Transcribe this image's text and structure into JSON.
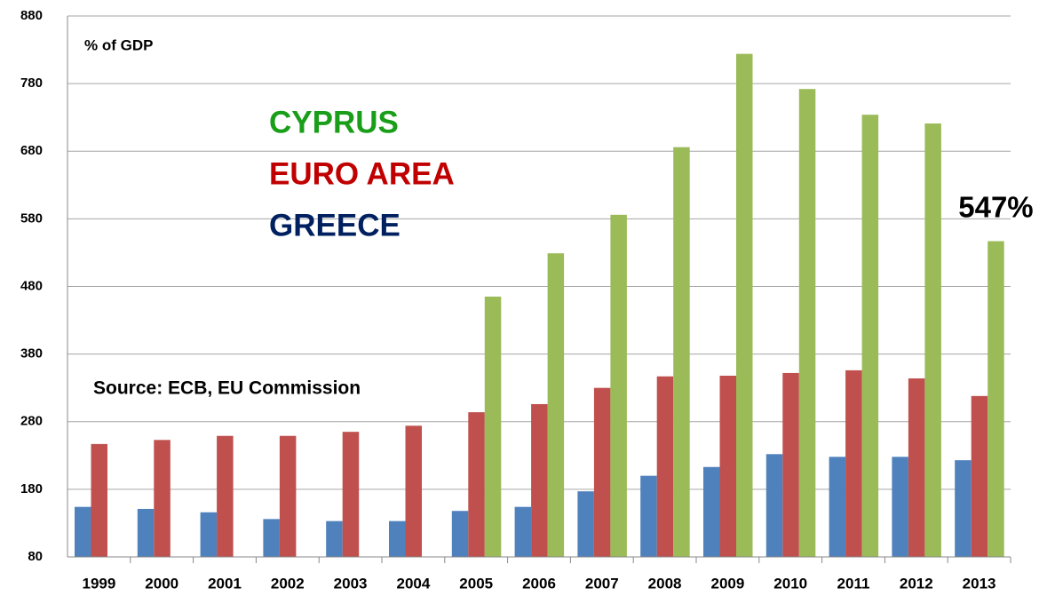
{
  "chart_data": {
    "type": "bar",
    "annotations": [
      "% of GDP",
      "Source:  ECB, EU Commission"
    ],
    "categories": [
      "1999",
      "2000",
      "2001",
      "2002",
      "2003",
      "2004",
      "2005",
      "2006",
      "2007",
      "2008",
      "2009",
      "2010",
      "2011",
      "2012",
      "2013"
    ],
    "series": [
      {
        "name": "GREECE",
        "color": "#4f81bd",
        "label_color": "#002060",
        "values": [
          154,
          151,
          146,
          136,
          133,
          133,
          148,
          154,
          177,
          200,
          213,
          232,
          228,
          228,
          223
        ]
      },
      {
        "name": "EURO AREA",
        "color": "#c0504d",
        "label_color": "#c00000",
        "values": [
          247,
          253,
          259,
          259,
          265,
          274,
          294,
          306,
          330,
          347,
          348,
          352,
          356,
          344,
          318
        ]
      },
      {
        "name": "CYPRUS",
        "color": "#9bbb59",
        "label_color": "#1a9e1a",
        "values": [
          null,
          null,
          null,
          null,
          null,
          null,
          465,
          529,
          586,
          686,
          824,
          772,
          734,
          721,
          547
        ],
        "value_labels": [
          null,
          null,
          null,
          null,
          null,
          null,
          null,
          null,
          null,
          null,
          null,
          null,
          null,
          null,
          "547%"
        ]
      }
    ],
    "ylim": [
      80,
      880
    ],
    "yticks": [
      80,
      180,
      280,
      380,
      480,
      580,
      680,
      780,
      880
    ],
    "grid": true
  }
}
